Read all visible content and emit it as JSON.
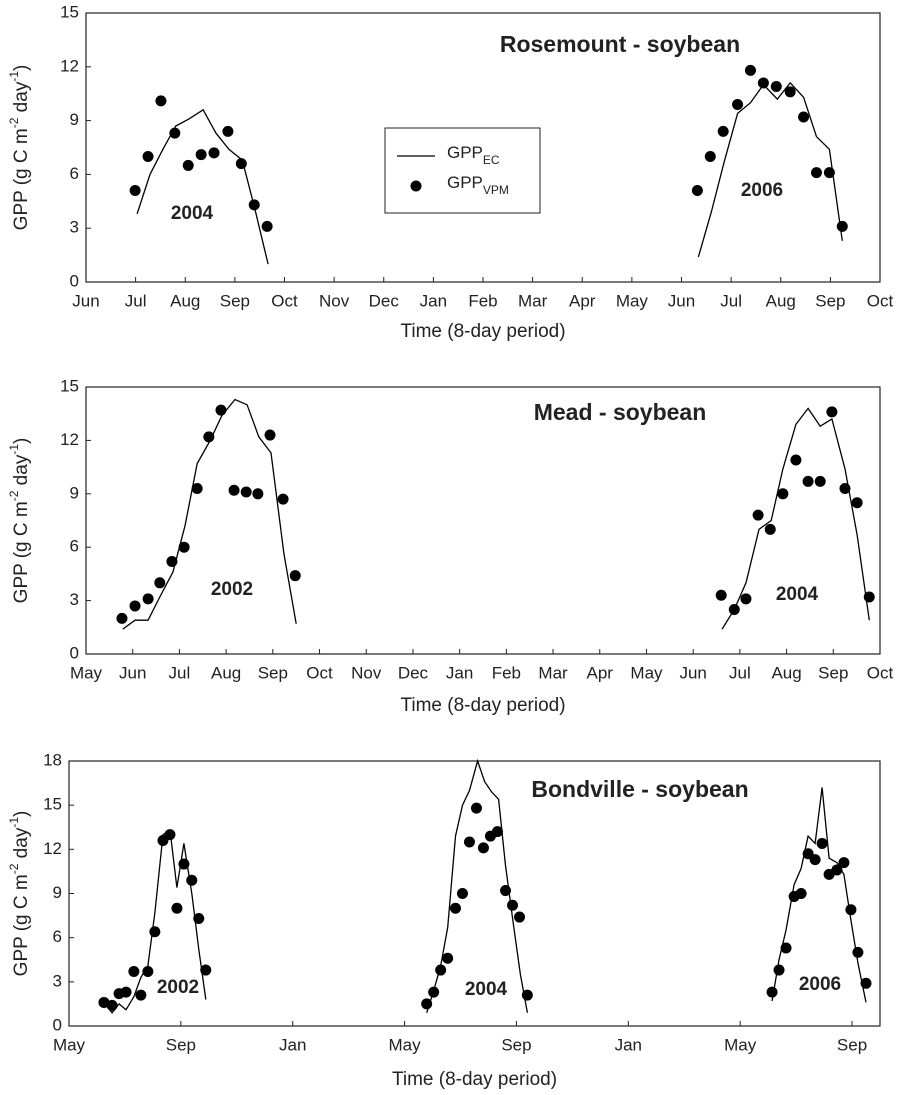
{
  "chart_data": [
    {
      "type": "line",
      "title": "Rosemount - soybean",
      "xlabel": "Time (8-day period)",
      "ylabel": [
        "GPP (g C m",
        "-2",
        " day",
        "-1",
        ")"
      ],
      "annotations": [
        "2004",
        "2006"
      ],
      "xlim": [
        0,
        16
      ],
      "xticks": [
        {
          "value": 0,
          "label": "Jun"
        },
        {
          "value": 1,
          "label": "Jul"
        },
        {
          "value": 2,
          "label": "Aug"
        },
        {
          "value": 3,
          "label": "Sep"
        },
        {
          "value": 4,
          "label": "Oct"
        },
        {
          "value": 5,
          "label": "Nov"
        },
        {
          "value": 6,
          "label": "Dec"
        },
        {
          "value": 7,
          "label": "Jan"
        },
        {
          "value": 8,
          "label": "Feb"
        },
        {
          "value": 9,
          "label": "Mar"
        },
        {
          "value": 10,
          "label": "Apr"
        },
        {
          "value": 11,
          "label": "May"
        },
        {
          "value": 12,
          "label": "Jun"
        },
        {
          "value": 13,
          "label": "Jul"
        },
        {
          "value": 14,
          "label": "Aug"
        },
        {
          "value": 15,
          "label": "Sep"
        },
        {
          "value": 16,
          "label": "Oct"
        }
      ],
      "ylim": [
        0,
        15
      ],
      "yticks": [
        0,
        3,
        6,
        9,
        12,
        15
      ],
      "legend": "upper-center",
      "series": [
        {
          "name": "GPP",
          "subscript": "EC",
          "type": "line",
          "color": "#000000",
          "x": [
            1.03,
            1.29,
            1.55,
            1.81,
            2.08,
            2.36,
            2.62,
            2.88,
            3.15,
            3.41,
            3.67,
            null,
            12.34,
            12.6,
            12.86,
            13.13,
            13.39,
            13.65,
            13.93,
            14.19,
            14.46,
            14.72,
            14.98,
            15.24
          ],
          "values": [
            3.8,
            6.0,
            7.4,
            8.7,
            9.1,
            9.6,
            8.3,
            7.4,
            6.8,
            4.0,
            1.0,
            null,
            1.4,
            3.9,
            6.7,
            9.4,
            10.0,
            11.0,
            10.2,
            11.1,
            10.3,
            8.1,
            7.4,
            2.3
          ]
        },
        {
          "name": "GPP",
          "subscript": "VPM",
          "type": "scatter",
          "color": "#000000",
          "x": [
            0.99,
            1.25,
            1.51,
            1.79,
            2.06,
            2.32,
            2.58,
            2.86,
            3.13,
            3.39,
            3.65,
            12.32,
            12.58,
            12.84,
            13.13,
            13.39,
            13.65,
            13.91,
            14.19,
            14.46,
            14.72,
            14.98,
            15.24
          ],
          "values": [
            5.1,
            7.0,
            10.1,
            8.3,
            6.5,
            7.1,
            7.2,
            8.4,
            6.6,
            4.3,
            3.1,
            5.1,
            7.0,
            8.4,
            9.9,
            11.8,
            11.1,
            10.9,
            10.6,
            9.2,
            6.1,
            6.1,
            3.1
          ]
        }
      ]
    },
    {
      "type": "line",
      "title": "Mead - soybean",
      "xlabel": "Time (8-day period)",
      "ylabel": [
        "GPP (g C m",
        "-2",
        " day",
        "-1",
        ")"
      ],
      "annotations": [
        "2002",
        "2004"
      ],
      "xlim": [
        0,
        17
      ],
      "xticks": [
        {
          "value": 0,
          "label": "May"
        },
        {
          "value": 1,
          "label": "Jun"
        },
        {
          "value": 2,
          "label": "Jul"
        },
        {
          "value": 3,
          "label": "Aug"
        },
        {
          "value": 4,
          "label": "Sep"
        },
        {
          "value": 5,
          "label": "Oct"
        },
        {
          "value": 6,
          "label": "Nov"
        },
        {
          "value": 7,
          "label": "Dec"
        },
        {
          "value": 8,
          "label": "Jan"
        },
        {
          "value": 9,
          "label": "Feb"
        },
        {
          "value": 10,
          "label": "Mar"
        },
        {
          "value": 11,
          "label": "Apr"
        },
        {
          "value": 12,
          "label": "May"
        },
        {
          "value": 13,
          "label": "Jun"
        },
        {
          "value": 14,
          "label": "Jul"
        },
        {
          "value": 15,
          "label": "Aug"
        },
        {
          "value": 16,
          "label": "Sep"
        },
        {
          "value": 17,
          "label": "Oct"
        }
      ],
      "ylim": [
        0,
        15
      ],
      "yticks": [
        0,
        3,
        6,
        9,
        12,
        15
      ],
      "series": [
        {
          "type": "line",
          "color": "#000000",
          "x": [
            0.79,
            1.05,
            1.33,
            1.58,
            1.86,
            2.12,
            2.38,
            2.66,
            2.91,
            3.19,
            3.45,
            3.7,
            3.96,
            4.24,
            4.5,
            null,
            13.62,
            13.88,
            14.13,
            14.41,
            14.67,
            14.92,
            15.2,
            15.46,
            15.72,
            15.97,
            16.25,
            16.51,
            16.77
          ],
          "values": [
            1.4,
            1.9,
            1.9,
            3.2,
            4.6,
            7.2,
            10.7,
            12.0,
            13.4,
            14.3,
            14.0,
            12.2,
            11.3,
            5.6,
            1.7,
            null,
            1.4,
            2.5,
            4.0,
            7.0,
            7.5,
            10.4,
            12.9,
            13.8,
            12.8,
            13.2,
            10.4,
            6.7,
            1.9
          ]
        },
        {
          "type": "scatter",
          "color": "#000000",
          "x": [
            0.77,
            1.05,
            1.33,
            1.58,
            1.84,
            2.1,
            2.38,
            2.63,
            2.89,
            3.17,
            3.43,
            3.68,
            3.94,
            4.22,
            4.48,
            13.6,
            13.88,
            14.13,
            14.39,
            14.65,
            14.92,
            15.2,
            15.46,
            15.72,
            15.97,
            16.25,
            16.51,
            16.77
          ],
          "values": [
            2.0,
            2.7,
            3.1,
            4.0,
            5.2,
            6.0,
            9.3,
            12.2,
            13.7,
            9.2,
            9.1,
            9.0,
            12.3,
            8.7,
            4.4,
            3.3,
            2.5,
            3.1,
            7.8,
            7.0,
            9.0,
            10.9,
            9.7,
            9.7,
            13.6,
            9.3,
            8.5,
            3.2
          ]
        }
      ]
    },
    {
      "type": "line",
      "title": "Bondville - soybean",
      "xlabel": "Time (8-day period)",
      "ylabel": [
        "GPP (g C m",
        "-2",
        " day",
        "-1",
        ")"
      ],
      "annotations": [
        "2002",
        "2004",
        "2006"
      ],
      "xlim": [
        0,
        29
      ],
      "xticks": [
        {
          "value": 0,
          "label": "May"
        },
        {
          "value": 4,
          "label": "Sep"
        },
        {
          "value": 8,
          "label": "Jan"
        },
        {
          "value": 12,
          "label": "May"
        },
        {
          "value": 16,
          "label": "Sep"
        },
        {
          "value": 20,
          "label": "Jan"
        },
        {
          "value": 24,
          "label": "May"
        },
        {
          "value": 28,
          "label": "Sep"
        }
      ],
      "ylim": [
        0,
        18
      ],
      "yticks": [
        0,
        3,
        6,
        9,
        12,
        15,
        18
      ],
      "series": [
        {
          "type": "line",
          "color": "#000000",
          "x": [
            1.25,
            1.54,
            1.79,
            2.04,
            2.32,
            2.57,
            2.82,
            3.07,
            3.36,
            3.61,
            3.86,
            4.11,
            4.39,
            4.64,
            4.89,
            null,
            12.79,
            13.04,
            13.29,
            13.54,
            13.82,
            14.07,
            14.32,
            14.61,
            14.86,
            15.11,
            15.36,
            15.61,
            15.89,
            16.14,
            16.39,
            null,
            25.14,
            25.39,
            25.64,
            25.93,
            26.18,
            26.43,
            26.68,
            26.93,
            27.18,
            27.46,
            27.71,
            27.96,
            28.21,
            28.5
          ],
          "values": [
            1.6,
            0.9,
            1.5,
            1.1,
            2.0,
            3.3,
            4.1,
            7.7,
            13.0,
            13.3,
            9.4,
            12.4,
            9.0,
            5.2,
            1.8,
            null,
            0.9,
            2.4,
            4.1,
            6.7,
            12.9,
            15.0,
            16.0,
            18.0,
            16.6,
            15.9,
            15.4,
            10.9,
            6.9,
            3.5,
            0.9,
            null,
            1.7,
            4.5,
            6.5,
            9.6,
            10.7,
            12.9,
            12.4,
            16.2,
            11.4,
            11.1,
            10.3,
            7.2,
            4.3,
            1.6
          ]
        },
        {
          "type": "scatter",
          "color": "#000000",
          "x": [
            1.25,
            1.54,
            1.79,
            2.04,
            2.32,
            2.57,
            2.82,
            3.07,
            3.36,
            3.61,
            3.86,
            4.11,
            4.39,
            4.64,
            4.89,
            12.79,
            13.04,
            13.29,
            13.54,
            13.82,
            14.07,
            14.32,
            14.57,
            14.82,
            15.07,
            15.32,
            15.61,
            15.86,
            16.11,
            16.39,
            25.14,
            25.39,
            25.64,
            25.93,
            26.18,
            26.43,
            26.68,
            26.93,
            27.18,
            27.46,
            27.71,
            27.96,
            28.21,
            28.5
          ],
          "values": [
            1.6,
            1.4,
            2.2,
            2.3,
            3.7,
            2.1,
            3.7,
            6.4,
            12.6,
            13.0,
            8.0,
            11.0,
            9.9,
            7.3,
            3.8,
            1.5,
            2.3,
            3.8,
            4.6,
            8.0,
            9.0,
            12.5,
            14.8,
            12.1,
            12.9,
            13.2,
            9.2,
            8.2,
            7.4,
            2.1,
            2.3,
            3.8,
            5.3,
            8.8,
            9.0,
            11.7,
            11.3,
            12.4,
            10.3,
            10.6,
            11.1,
            7.9,
            5.0,
            2.9
          ]
        }
      ]
    }
  ]
}
